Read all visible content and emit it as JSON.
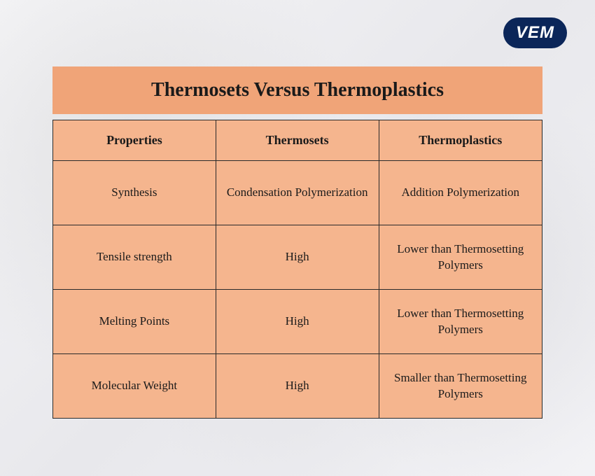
{
  "logo": {
    "text": "VEM",
    "bg_color": "#0b2659",
    "text_color": "#ffffff"
  },
  "title": "Thermosets Versus Thermoplastics",
  "colors": {
    "title_bg": "#f0a478",
    "table_bg": "#f5b58e",
    "border": "#2a2a2a",
    "text": "#1a1a1a"
  },
  "table": {
    "columns": [
      "Properties",
      "Thermosets",
      "Thermoplastics"
    ],
    "rows": [
      [
        "Synthesis",
        "Condensation Polymerization",
        "Addition Polymerization"
      ],
      [
        "Tensile strength",
        "High",
        "Lower than Thermosetting Polymers"
      ],
      [
        "Melting Points",
        "High",
        "Lower than Thermosetting Polymers"
      ],
      [
        "Molecular Weight",
        "High",
        "Smaller than Thermosetting Polymers"
      ]
    ]
  },
  "typography": {
    "title_fontsize": 28,
    "header_fontsize": 18,
    "cell_fontsize": 17,
    "font_family": "Georgia, serif"
  }
}
